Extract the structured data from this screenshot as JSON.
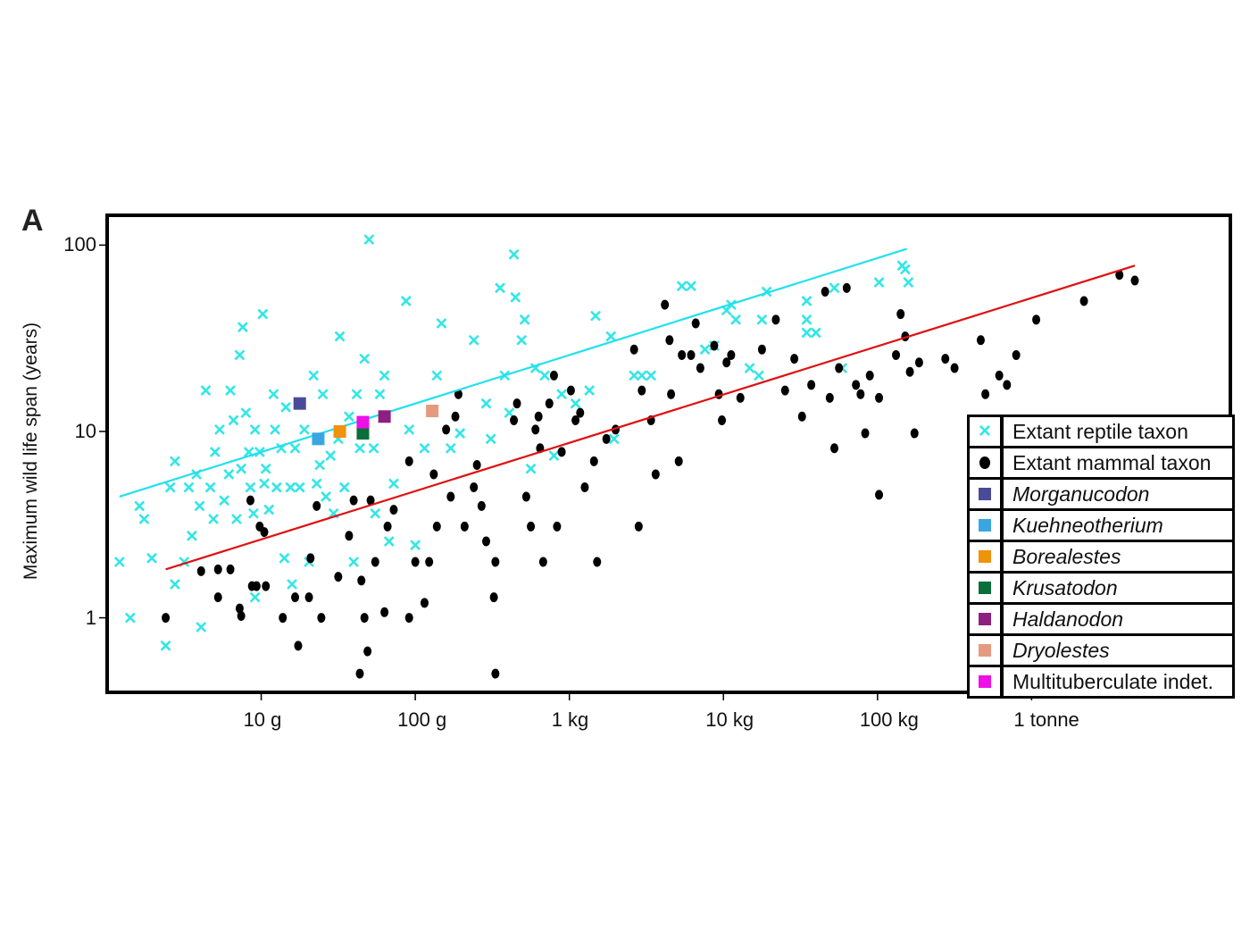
{
  "panel_label": "A",
  "chart_data": {
    "type": "scatter",
    "title": "",
    "xlabel": "",
    "ylabel": "Maximum wild life span (years)",
    "x_scale": "log10 body mass (g)",
    "y_scale": "log10 maximum wild life span (years)",
    "xlim_log10_g": [
      0.0,
      7.29
    ],
    "ylim_log10_years": [
      -0.4,
      2.16
    ],
    "x_ticks": [
      {
        "log10": 1,
        "label": "10 g"
      },
      {
        "log10": 2,
        "label": "100 g"
      },
      {
        "log10": 3,
        "label": "1 kg"
      },
      {
        "log10": 4,
        "label": "10 kg"
      },
      {
        "log10": 5,
        "label": "100 kg"
      },
      {
        "log10": 6,
        "label": "1 tonne"
      }
    ],
    "y_ticks": [
      {
        "log10": 2,
        "label": "100"
      },
      {
        "log10": 1,
        "label": "10"
      },
      {
        "log10": 0,
        "label": "1"
      }
    ],
    "grid": false,
    "legend_placement": "bottom-right",
    "colors": {
      "reptile": "#33e6e6",
      "mammal": "#000000",
      "reptile_fit": "#22e0f0",
      "mammal_fit": "#e01010"
    },
    "fit_lines": [
      {
        "name": "reptile fit",
        "from": [
          0.08,
          0.65
        ],
        "to": [
          5.19,
          1.98
        ]
      },
      {
        "name": "mammal fit",
        "from": [
          0.38,
          0.26
        ],
        "to": [
          6.67,
          1.89
        ]
      }
    ],
    "legend": [
      {
        "label": "Extant reptile taxon",
        "marker": "x",
        "color": "#33e6e6",
        "italic": false
      },
      {
        "label": "Extant mammal taxon",
        "marker": "dot",
        "color": "#000000",
        "italic": false
      },
      {
        "label": "Morganucodon",
        "marker": "square",
        "color": "#4a4a9a",
        "italic": true
      },
      {
        "label": "Kuehneotherium",
        "marker": "square",
        "color": "#3aa6e0",
        "italic": true
      },
      {
        "label": "Borealestes",
        "marker": "square",
        "color": "#f0920a",
        "italic": true
      },
      {
        "label": "Krusatodon",
        "marker": "square",
        "color": "#0a6e3a",
        "italic": true
      },
      {
        "label": "Haldanodon",
        "marker": "square",
        "color": "#8e1e80",
        "italic": true
      },
      {
        "label": "Dryolestes",
        "marker": "square",
        "color": "#e59a80",
        "italic": true
      },
      {
        "label": "Multituberculate indet.",
        "marker": "square",
        "color": "#ee10e6",
        "italic": false
      }
    ],
    "fossils": [
      {
        "name": "Morganucodon",
        "x": 1.25,
        "y": 1.15
      },
      {
        "name": "Kuehneotherium",
        "x": 1.37,
        "y": 0.96
      },
      {
        "name": "Borealestes",
        "x": 1.51,
        "y": 1.0
      },
      {
        "name": "Krusatodon",
        "x": 1.66,
        "y": 0.99
      },
      {
        "name": "Multituberculate indet.",
        "x": 1.66,
        "y": 1.05
      },
      {
        "name": "Haldanodon",
        "x": 1.8,
        "y": 1.08
      },
      {
        "name": "Dryolestes",
        "x": 2.11,
        "y": 1.11
      }
    ],
    "mammals": [
      [
        0.38,
        0.0
      ],
      [
        0.61,
        0.25
      ],
      [
        0.72,
        0.26
      ],
      [
        0.8,
        0.26
      ],
      [
        0.72,
        0.11
      ],
      [
        0.87,
        0.01
      ],
      [
        0.86,
        0.05
      ],
      [
        0.94,
        0.17
      ],
      [
        0.97,
        0.17
      ],
      [
        1.03,
        0.17
      ],
      [
        0.93,
        0.63
      ],
      [
        0.99,
        0.49
      ],
      [
        1.02,
        0.46
      ],
      [
        1.14,
        0.0
      ],
      [
        1.24,
        -0.15
      ],
      [
        1.22,
        0.11
      ],
      [
        1.31,
        0.11
      ],
      [
        1.32,
        0.32
      ],
      [
        1.36,
        0.6
      ],
      [
        1.39,
        0.0
      ],
      [
        1.5,
        0.22
      ],
      [
        1.57,
        0.44
      ],
      [
        1.6,
        0.63
      ],
      [
        1.65,
        0.2
      ],
      [
        1.64,
        -0.3
      ],
      [
        1.69,
        -0.18
      ],
      [
        1.67,
        0.0
      ],
      [
        1.71,
        0.63
      ],
      [
        1.74,
        0.3
      ],
      [
        1.8,
        0.03
      ],
      [
        1.82,
        0.49
      ],
      [
        1.86,
        0.58
      ],
      [
        1.96,
        0.84
      ],
      [
        1.96,
        0.0
      ],
      [
        2.0,
        0.3
      ],
      [
        2.06,
        0.08
      ],
      [
        2.09,
        0.3
      ],
      [
        2.12,
        0.77
      ],
      [
        2.14,
        0.49
      ],
      [
        2.2,
        1.01
      ],
      [
        2.23,
        0.65
      ],
      [
        2.26,
        1.08
      ],
      [
        2.28,
        1.2
      ],
      [
        2.32,
        0.49
      ],
      [
        2.38,
        0.7
      ],
      [
        2.4,
        0.82
      ],
      [
        2.43,
        0.6
      ],
      [
        2.46,
        0.41
      ],
      [
        2.52,
        0.3
      ],
      [
        2.51,
        0.11
      ],
      [
        2.52,
        -0.3
      ],
      [
        2.64,
        1.06
      ],
      [
        2.66,
        1.15
      ],
      [
        2.72,
        0.65
      ],
      [
        2.75,
        0.49
      ],
      [
        2.78,
        1.01
      ],
      [
        2.8,
        1.08
      ],
      [
        2.83,
        0.3
      ],
      [
        2.81,
        0.91
      ],
      [
        2.87,
        1.15
      ],
      [
        2.9,
        1.3
      ],
      [
        2.92,
        0.49
      ],
      [
        2.95,
        0.89
      ],
      [
        3.01,
        1.22
      ],
      [
        3.04,
        1.06
      ],
      [
        3.07,
        1.1
      ],
      [
        3.1,
        0.7
      ],
      [
        3.16,
        0.84
      ],
      [
        3.18,
        0.3
      ],
      [
        3.24,
        0.96
      ],
      [
        3.3,
        1.01
      ],
      [
        3.42,
        1.44
      ],
      [
        3.45,
        0.49
      ],
      [
        3.47,
        1.22
      ],
      [
        3.53,
        1.06
      ],
      [
        3.56,
        0.77
      ],
      [
        3.62,
        1.68
      ],
      [
        3.65,
        1.49
      ],
      [
        3.66,
        1.2
      ],
      [
        3.71,
        0.84
      ],
      [
        3.73,
        1.41
      ],
      [
        3.79,
        1.41
      ],
      [
        3.82,
        1.58
      ],
      [
        3.85,
        1.34
      ],
      [
        3.94,
        1.46
      ],
      [
        3.97,
        1.2
      ],
      [
        3.99,
        1.06
      ],
      [
        4.02,
        1.37
      ],
      [
        4.05,
        1.41
      ],
      [
        4.11,
        1.18
      ],
      [
        4.25,
        1.44
      ],
      [
        4.34,
        1.6
      ],
      [
        4.4,
        1.22
      ],
      [
        4.46,
        1.39
      ],
      [
        4.51,
        1.08
      ],
      [
        4.57,
        1.25
      ],
      [
        4.66,
        1.75
      ],
      [
        4.69,
        1.18
      ],
      [
        4.72,
        0.91
      ],
      [
        4.75,
        1.34
      ],
      [
        4.8,
        1.77
      ],
      [
        4.86,
        1.25
      ],
      [
        4.89,
        1.2
      ],
      [
        4.92,
        0.99
      ],
      [
        4.95,
        1.3
      ],
      [
        5.01,
        0.66
      ],
      [
        5.01,
        1.18
      ],
      [
        5.12,
        1.41
      ],
      [
        5.15,
        1.63
      ],
      [
        5.18,
        1.51
      ],
      [
        5.21,
        1.32
      ],
      [
        5.24,
        0.99
      ],
      [
        5.27,
        1.37
      ],
      [
        5.44,
        1.39
      ],
      [
        5.5,
        1.34
      ],
      [
        5.67,
        1.49
      ],
      [
        5.7,
        1.2
      ],
      [
        5.79,
        1.3
      ],
      [
        5.84,
        1.25
      ],
      [
        5.9,
        1.41
      ],
      [
        6.03,
        1.6
      ],
      [
        6.34,
        1.7
      ],
      [
        6.57,
        1.84
      ],
      [
        6.67,
        1.81
      ]
    ],
    "reptiles": [
      [
        0.08,
        0.3
      ],
      [
        0.15,
        0.0
      ],
      [
        0.21,
        0.6
      ],
      [
        0.24,
        0.53
      ],
      [
        0.29,
        0.32
      ],
      [
        0.38,
        -0.15
      ],
      [
        0.41,
        0.7
      ],
      [
        0.44,
        0.84
      ],
      [
        0.44,
        0.18
      ],
      [
        0.5,
        0.3
      ],
      [
        0.53,
        0.7
      ],
      [
        0.55,
        0.44
      ],
      [
        0.58,
        0.77
      ],
      [
        0.6,
        0.6
      ],
      [
        0.61,
        -0.05
      ],
      [
        0.64,
        1.22
      ],
      [
        0.67,
        0.7
      ],
      [
        0.69,
        0.53
      ],
      [
        0.7,
        0.89
      ],
      [
        0.73,
        1.01
      ],
      [
        0.76,
        0.63
      ],
      [
        0.79,
        0.77
      ],
      [
        0.8,
        1.22
      ],
      [
        0.82,
        1.06
      ],
      [
        0.84,
        0.53
      ],
      [
        0.86,
        1.41
      ],
      [
        0.87,
        0.8
      ],
      [
        0.88,
        1.56
      ],
      [
        0.9,
        1.1
      ],
      [
        0.92,
        0.89
      ],
      [
        0.93,
        0.7
      ],
      [
        0.95,
        0.56
      ],
      [
        0.96,
        1.01
      ],
      [
        0.96,
        0.11
      ],
      [
        0.99,
        0.89
      ],
      [
        1.01,
        1.63
      ],
      [
        1.02,
        0.72
      ],
      [
        1.03,
        0.8
      ],
      [
        1.05,
        0.58
      ],
      [
        1.08,
        1.2
      ],
      [
        1.09,
        1.01
      ],
      [
        1.1,
        0.7
      ],
      [
        1.13,
        0.91
      ],
      [
        1.15,
        0.32
      ],
      [
        1.16,
        1.13
      ],
      [
        1.19,
        0.7
      ],
      [
        1.2,
        0.18
      ],
      [
        1.22,
        0.91
      ],
      [
        1.25,
        0.7
      ],
      [
        1.28,
        1.01
      ],
      [
        1.31,
        0.3
      ],
      [
        1.34,
        1.3
      ],
      [
        1.36,
        0.72
      ],
      [
        1.38,
        0.82
      ],
      [
        1.4,
        1.2
      ],
      [
        1.42,
        0.65
      ],
      [
        1.45,
        0.87
      ],
      [
        1.47,
        0.56
      ],
      [
        1.5,
        0.96
      ],
      [
        1.51,
        1.51
      ],
      [
        1.54,
        0.7
      ],
      [
        1.57,
        1.08
      ],
      [
        1.6,
        0.3
      ],
      [
        1.62,
        1.2
      ],
      [
        1.64,
        0.91
      ],
      [
        1.67,
        1.39
      ],
      [
        1.7,
        2.03
      ],
      [
        1.73,
        0.91
      ],
      [
        1.74,
        0.56
      ],
      [
        1.77,
        1.2
      ],
      [
        1.8,
        1.3
      ],
      [
        1.83,
        0.41
      ],
      [
        1.86,
        0.72
      ],
      [
        1.94,
        1.7
      ],
      [
        1.96,
        1.01
      ],
      [
        2.0,
        0.39
      ],
      [
        2.06,
        0.91
      ],
      [
        2.14,
        1.3
      ],
      [
        2.17,
        1.58
      ],
      [
        2.23,
        0.91
      ],
      [
        2.29,
        0.99
      ],
      [
        2.38,
        1.49
      ],
      [
        2.46,
        1.15
      ],
      [
        2.49,
        0.96
      ],
      [
        2.55,
        1.77
      ],
      [
        2.58,
        1.3
      ],
      [
        2.61,
        1.1
      ],
      [
        2.64,
        1.95
      ],
      [
        2.65,
        1.72
      ],
      [
        2.69,
        1.49
      ],
      [
        2.71,
        1.6
      ],
      [
        2.75,
        0.8
      ],
      [
        2.78,
        1.34
      ],
      [
        2.84,
        1.3
      ],
      [
        2.9,
        0.87
      ],
      [
        2.95,
        1.2
      ],
      [
        3.04,
        1.15
      ],
      [
        3.13,
        1.22
      ],
      [
        3.17,
        1.62
      ],
      [
        3.27,
        1.51
      ],
      [
        3.29,
        0.96
      ],
      [
        3.42,
        1.3
      ],
      [
        3.47,
        1.3
      ],
      [
        3.53,
        1.3
      ],
      [
        3.73,
        1.78
      ],
      [
        3.79,
        1.78
      ],
      [
        3.88,
        1.44
      ],
      [
        3.94,
        1.46
      ],
      [
        4.02,
        1.65
      ],
      [
        4.05,
        1.68
      ],
      [
        4.08,
        1.6
      ],
      [
        4.17,
        1.34
      ],
      [
        4.23,
        1.3
      ],
      [
        4.25,
        1.6
      ],
      [
        4.28,
        1.75
      ],
      [
        4.54,
        1.7
      ],
      [
        4.54,
        1.6
      ],
      [
        4.54,
        1.53
      ],
      [
        4.6,
        1.53
      ],
      [
        4.72,
        1.77
      ],
      [
        4.77,
        1.34
      ],
      [
        5.01,
        1.8
      ],
      [
        5.16,
        1.89
      ],
      [
        5.18,
        1.87
      ],
      [
        5.2,
        1.8
      ]
    ]
  }
}
